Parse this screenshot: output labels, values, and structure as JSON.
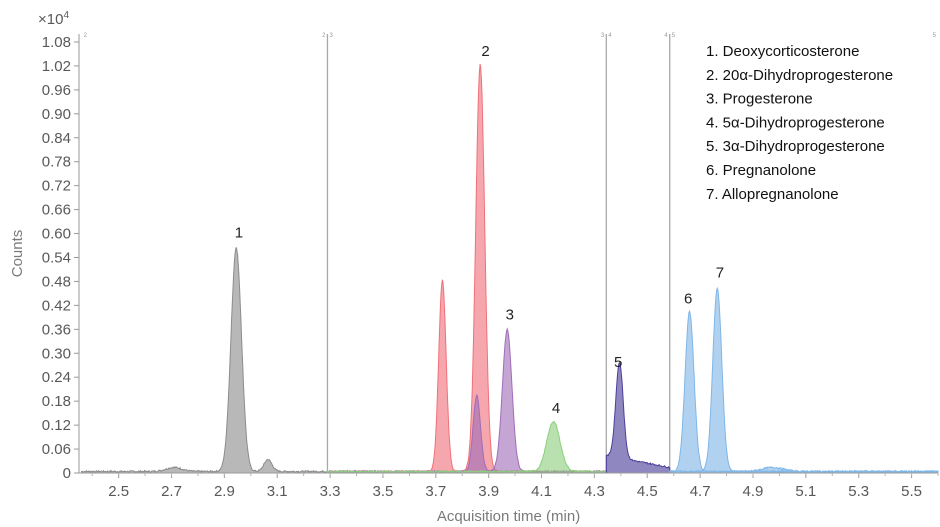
{
  "chart_data": {
    "type": "area",
    "xlabel": "Acquisition time (min)",
    "ylabel": "Counts",
    "y_multiplier": "×10",
    "y_multiplier_exp": "4",
    "xlim": [
      2.35,
      5.6
    ],
    "ylim": [
      0,
      1.1
    ],
    "x_ticks": [
      "2.5",
      "2.7",
      "2.9",
      "3.1",
      "3.3",
      "3.5",
      "3.7",
      "3.9",
      "4.1",
      "4.3",
      "4.5",
      "4.7",
      "4.9",
      "5.1",
      "5.3",
      "5.5"
    ],
    "y_ticks": [
      "0",
      "0.06",
      "0.12",
      "0.18",
      "0.24",
      "0.30",
      "0.36",
      "0.42",
      "0.48",
      "0.54",
      "0.60",
      "0.66",
      "0.72",
      "0.78",
      "0.84",
      "0.90",
      "0.96",
      "1.02",
      "1.08"
    ],
    "segment_breaks": [
      3.29,
      4.345,
      4.585
    ],
    "segment_markers": [
      {
        "x": 2.36,
        "text": "2",
        "side": "right"
      },
      {
        "x": 3.29,
        "text": "2",
        "side": "left"
      },
      {
        "x": 3.29,
        "text": "3",
        "side": "right"
      },
      {
        "x": 4.345,
        "text": "3",
        "side": "left"
      },
      {
        "x": 4.345,
        "text": "4",
        "side": "right"
      },
      {
        "x": 4.585,
        "text": "4",
        "side": "left"
      },
      {
        "x": 4.585,
        "text": "5",
        "side": "right"
      },
      {
        "x": 5.6,
        "text": "5",
        "side": "left"
      }
    ],
    "series": [
      {
        "name": "Deoxycorticosterone",
        "label": "1",
        "color": "#8c8c8c",
        "center": 2.945,
        "height": 0.56,
        "width": 0.02,
        "xmin": 2.36,
        "xmax": 3.29,
        "label_x": 2.955,
        "label_y": 0.59,
        "extra": [
          [
            2.71,
            0.01,
            0.03
          ],
          [
            3.065,
            0.03,
            0.015
          ]
        ]
      },
      {
        "name": "20α-Dihydroprogesterone",
        "label": "2",
        "color": "#f0707a",
        "center": 3.868,
        "height": 1.02,
        "width": 0.017,
        "xmin": 3.29,
        "xmax": 4.345,
        "label_x": 3.888,
        "label_y": 1.045,
        "extra": [
          [
            3.725,
            0.48,
            0.014
          ]
        ]
      },
      {
        "name": "Progesterone",
        "label": "3",
        "color": "#a06db8",
        "center": 3.97,
        "height": 0.355,
        "width": 0.018,
        "xmin": 3.29,
        "xmax": 4.345,
        "label_x": 3.98,
        "label_y": 0.385,
        "extra": [
          [
            3.855,
            0.19,
            0.014
          ]
        ]
      },
      {
        "name": "5α-Dihydroprogesterone",
        "label": "4",
        "color": "#8ccf7e",
        "center": 4.145,
        "height": 0.125,
        "width": 0.025,
        "xmin": 3.29,
        "xmax": 4.345,
        "label_x": 4.155,
        "label_y": 0.15,
        "extra": []
      },
      {
        "name": "3α-Dihydroprogesterone",
        "label": "5",
        "color": "#4b3f9a",
        "center": 4.395,
        "height": 0.24,
        "width": 0.014,
        "xmin": 4.345,
        "xmax": 4.585,
        "label_x": 4.39,
        "label_y": 0.265,
        "extra": []
      },
      {
        "name": "Pregnanolone",
        "label": "6",
        "color": "#7fb6e6",
        "center": 4.66,
        "height": 0.4,
        "width": 0.017,
        "xmin": 4.585,
        "xmax": 5.6,
        "label_x": 4.655,
        "label_y": 0.425,
        "extra": [
          [
            4.975,
            0.01,
            0.04
          ]
        ]
      },
      {
        "name": "Allopregnanolone",
        "label": "7",
        "color": "#7fb6e6",
        "center": 4.765,
        "height": 0.46,
        "width": 0.017,
        "xmin": 4.585,
        "xmax": 5.6,
        "label_x": 4.775,
        "label_y": 0.49,
        "extra": []
      }
    ],
    "legend": [
      "1. Deoxycorticosterone",
      "2. 20α-Dihydroprogesterone",
      "3. Progesterone",
      "4. 5α-Dihydroprogesterone",
      "5. 3α-Dihydroprogesterone",
      "6. Pregnanolone",
      "7. Allopregnanolone"
    ],
    "legend_position": "top-right"
  }
}
